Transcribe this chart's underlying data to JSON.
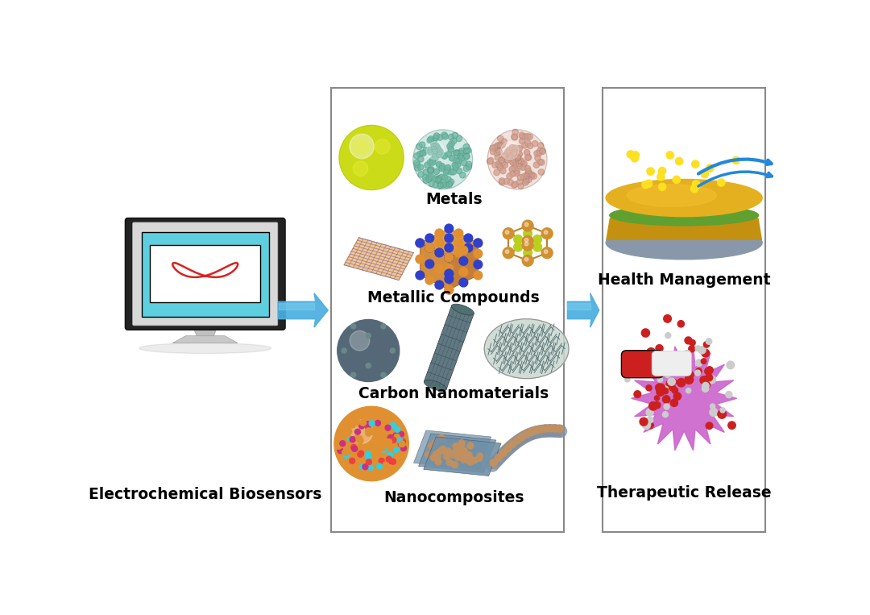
{
  "background_color": "#ffffff",
  "panel1_label": "Electrochemical Biosensors",
  "panel2_sections": [
    "Metals",
    "Metallic Compounds",
    "Carbon Nanomaterials",
    "Nanocomposites"
  ],
  "panel3_sections": [
    "Health Management",
    "Therapeutic Release"
  ],
  "arrow_color": "#4AA8DC",
  "box_border_color": "#999999",
  "label_fontsize": 13,
  "label_fontweight": "bold",
  "monitor_screen_color": "#5ECFDE",
  "curve_color": "#DD2020",
  "metal1_color": "#C8D820",
  "metal2_color": "#6EB8A4",
  "metal3_color": "#D4A090",
  "nmc_orange": "#E09030",
  "nmc_blue": "#3040CC",
  "lattice_color": "#C89040",
  "lattice_inner": "#D4B050",
  "carbon_color": "#5A7070",
  "nano_orange": "#E09030",
  "nano_sheet_color": "#7090A8",
  "nano_rod_gray": "#909090",
  "nano_rod_atom": "#C09070",
  "gold_top": "#E4B020",
  "gold_body": "#C49010",
  "gold_green": "#60A840",
  "gold_gray": "#909090",
  "yellow_particle": "#FFE020",
  "blue_arrow_color": "#2288DD",
  "cell_purple": "#CC66CC",
  "capsule_red": "#CC2020",
  "capsule_white": "#EEEEEE",
  "mol_red": "#CC2020",
  "mol_white": "#CCCCCC"
}
